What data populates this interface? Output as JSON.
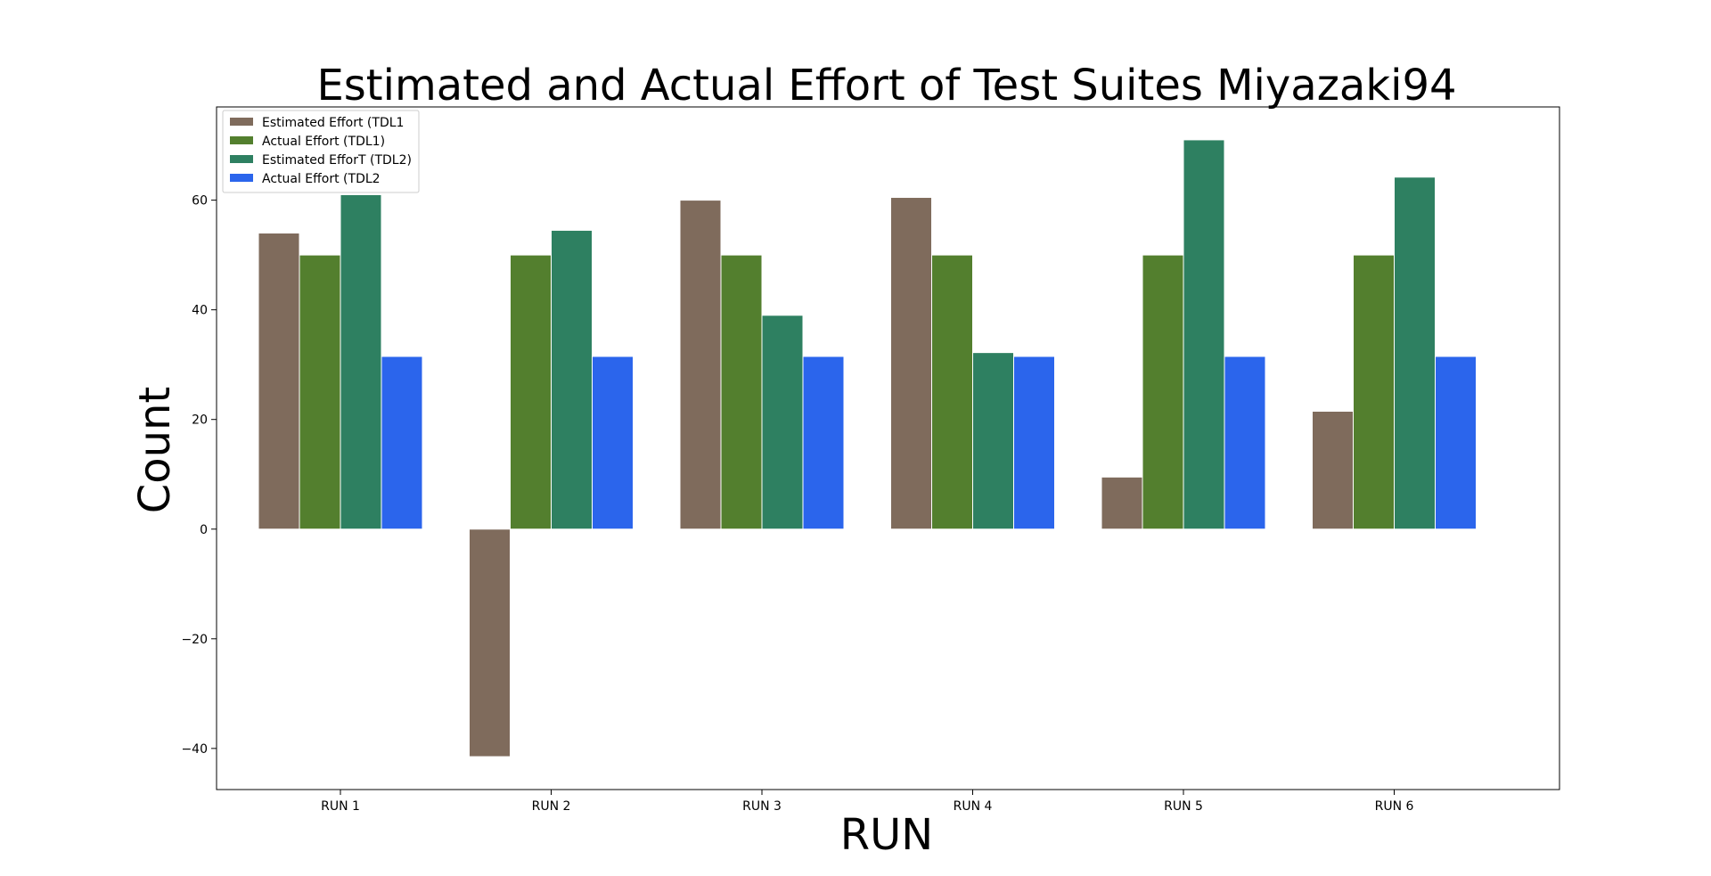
{
  "chart_data": {
    "type": "bar",
    "title": "Estimated and Actual Effort of Test Suites Miyazaki94",
    "xlabel": "RUN",
    "ylabel": "Count",
    "categories": [
      "RUN 1",
      "RUN 2",
      "RUN 3",
      "RUN 4",
      "RUN 5",
      "RUN 6"
    ],
    "ylim": [
      -47.5,
      77
    ],
    "yticks": [
      -40,
      -20,
      0,
      20,
      40,
      60
    ],
    "ytick_labels": [
      "−40",
      "−20",
      "0",
      "20",
      "40",
      "60"
    ],
    "grid": false,
    "legend_position": "top-left",
    "series": [
      {
        "name": "Estimated Effort (TDL1",
        "color": "#7f6b5c",
        "values": [
          54,
          -41.5,
          60,
          60.5,
          9.5,
          21.5
        ]
      },
      {
        "name": "Actual Effort (TDL1)",
        "color": "#537f2e",
        "values": [
          50,
          50,
          50,
          50,
          50,
          50
        ]
      },
      {
        "name": "Estimated EfforT (TDL2)",
        "color": "#2e8061",
        "values": [
          61,
          54.5,
          39,
          32.2,
          71,
          64.2
        ]
      },
      {
        "name": "Actual Effort (TDL2",
        "color": "#2b65ec",
        "values": [
          31.5,
          31.5,
          31.5,
          31.5,
          31.5,
          31.5
        ]
      }
    ]
  }
}
